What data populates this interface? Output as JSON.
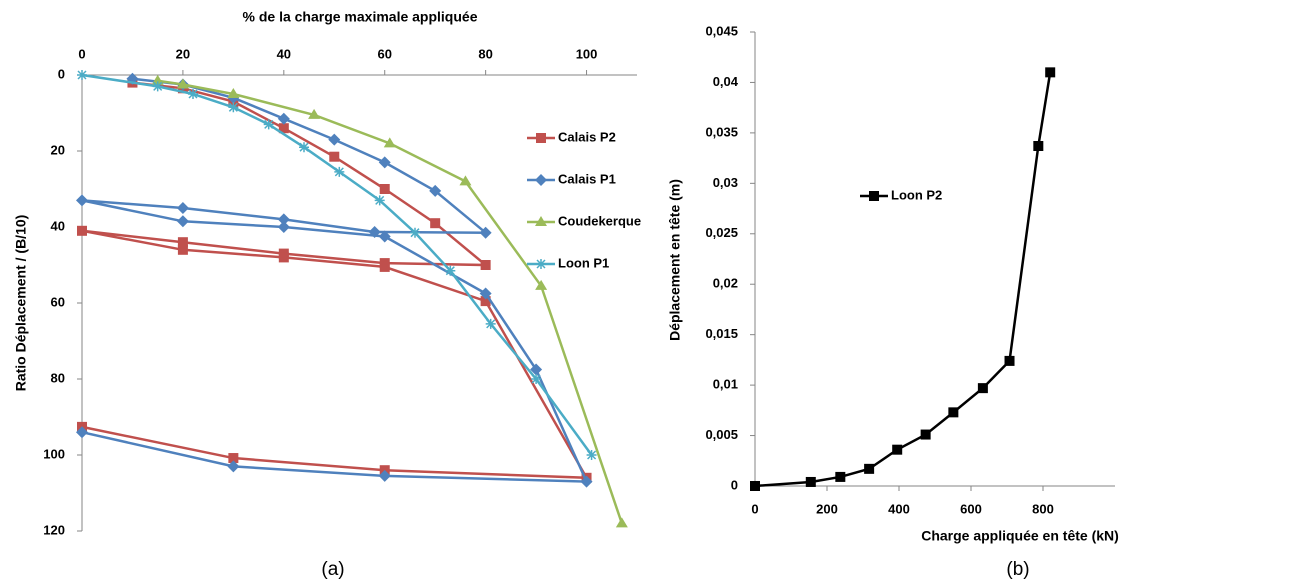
{
  "chart_data": [
    {
      "type": "line",
      "title_x": "% de la charge maximale appliquée",
      "title_y": "Ratio Déplacement / (B/10)",
      "caption": "(a)",
      "xlim": [
        0,
        110
      ],
      "xticks": [
        0,
        20,
        40,
        60,
        80,
        100
      ],
      "xaxis_position": "top",
      "ylim": [
        0,
        120
      ],
      "yticks": [
        0,
        20,
        40,
        60,
        80,
        100,
        120
      ],
      "y_inverted": true,
      "legend_position": "right",
      "series": [
        {
          "name": "Calais P2",
          "color": "#c0504d",
          "marker": "square",
          "x": [
            10,
            20,
            30,
            40,
            50,
            60,
            70,
            80,
            60,
            40,
            20,
            0,
            20,
            40,
            60,
            80,
            100,
            60,
            30,
            0
          ],
          "values": [
            2,
            3.5,
            7,
            14,
            21.5,
            30,
            39,
            50,
            49.5,
            47,
            44,
            41,
            46,
            48,
            50.5,
            59.5,
            106,
            104,
            100.8,
            92.6
          ]
        },
        {
          "name": "Calais P1",
          "color": "#4f81bd",
          "marker": "diamond",
          "x": [
            10,
            20,
            30,
            40,
            50,
            60,
            70,
            80,
            58,
            40,
            20,
            0,
            20,
            40,
            60,
            80,
            90,
            100,
            60,
            30,
            0
          ],
          "values": [
            1,
            2.5,
            6,
            11.5,
            17,
            23,
            30.5,
            41.5,
            41.3,
            38,
            35,
            33,
            38.5,
            40,
            42.5,
            57.5,
            77.5,
            107,
            105.5,
            103,
            94
          ]
        },
        {
          "name": "Coudekerque",
          "color": "#9bbb59",
          "marker": "triangle",
          "x": [
            15,
            20,
            30,
            46,
            61,
            76,
            91,
            107
          ],
          "values": [
            1.5,
            2.5,
            5,
            10.5,
            18,
            28,
            55.5,
            118
          ]
        },
        {
          "name": "Loon P1",
          "color": "#4bacc6",
          "marker": "asterisk",
          "x": [
            0,
            15,
            22,
            30,
            37,
            44,
            51,
            59,
            66,
            73,
            81,
            90,
            101
          ],
          "values": [
            0,
            3,
            5,
            8.5,
            13,
            19,
            25.5,
            33,
            41.5,
            51.5,
            65.5,
            80,
            100
          ]
        }
      ]
    },
    {
      "type": "line",
      "title_x": "Charge appliquée en tête (kN)",
      "title_y": "Déplacement en tête (m)",
      "caption": "(b)",
      "xlim": [
        0,
        1000
      ],
      "xticks": [
        0,
        200,
        400,
        600,
        800
      ],
      "xaxis_position": "bottom",
      "ylim": [
        0,
        0.045
      ],
      "yticks": [
        0,
        {
          "value": 0.005,
          "label": "0,005"
        },
        {
          "value": 0.01,
          "label": "0,01"
        },
        {
          "value": 0.015,
          "label": "0,015"
        },
        {
          "value": 0.02,
          "label": "0,02"
        },
        {
          "value": 0.025,
          "label": "0,025"
        },
        {
          "value": 0.03,
          "label": "0,03"
        },
        {
          "value": 0.035,
          "label": "0,035"
        },
        {
          "value": 0.04,
          "label": "0,04"
        },
        {
          "value": 0.045,
          "label": "0,045"
        }
      ],
      "y_inverted": false,
      "legend_position": "left",
      "series": [
        {
          "name": "Loon P2",
          "color": "#000000",
          "marker": "square",
          "x": [
            0,
            155,
            237,
            317,
            395,
            474,
            551,
            633,
            707,
            787,
            820
          ],
          "values": [
            0,
            0.0004,
            0.0009,
            0.0017,
            0.0036,
            0.0051,
            0.0073,
            0.0097,
            0.0124,
            0.0337,
            0.041
          ]
        }
      ]
    }
  ]
}
